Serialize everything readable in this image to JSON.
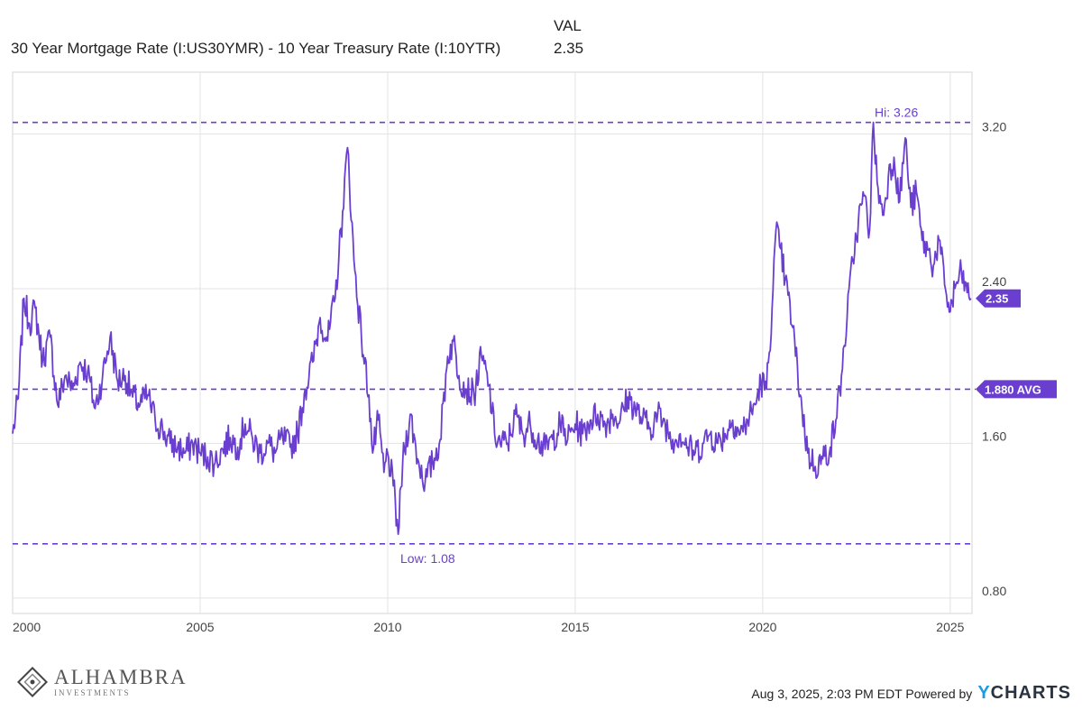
{
  "header": {
    "series_label": "30 Year Mortgage Rate (I:US30YMR) - 10 Year Treasury Rate (I:10YTR)",
    "val_header": "VAL",
    "val_value": "2.35"
  },
  "footer": {
    "timestamp": "Aug 3, 2025, 2:03 PM EDT Powered by",
    "brand_y": "Y",
    "brand_rest": "CHARTS"
  },
  "logo": {
    "name": "ALHAMBRA",
    "sub": "INVESTMENTS"
  },
  "colors": {
    "series": "#6a3fd0",
    "grid": "#e3e3e3",
    "axis_text": "#444444"
  },
  "chart_data": {
    "type": "line",
    "title": "",
    "xlabel": "",
    "ylabel": "",
    "x_range": [
      2000.0,
      2025.58
    ],
    "ylim": [
      0.72,
      3.52
    ],
    "x_ticks": [
      "2000",
      "2005",
      "2010",
      "2015",
      "2020",
      "2025"
    ],
    "y_ticks": [
      "0.80",
      "1.60",
      "2.40",
      "3.20"
    ],
    "grid": true,
    "series": [
      {
        "points": [
          [
            2000.0,
            1.65
          ],
          [
            2000.15,
            1.83
          ],
          [
            2000.3,
            2.35
          ],
          [
            2000.45,
            2.22
          ],
          [
            2000.6,
            2.3
          ],
          [
            2000.8,
            2.03
          ],
          [
            2001.0,
            2.15
          ],
          [
            2001.2,
            1.8
          ],
          [
            2001.4,
            1.95
          ],
          [
            2001.6,
            1.88
          ],
          [
            2001.8,
            2.02
          ],
          [
            2002.0,
            1.97
          ],
          [
            2002.2,
            1.78
          ],
          [
            2002.4,
            1.95
          ],
          [
            2002.6,
            2.15
          ],
          [
            2002.8,
            1.92
          ],
          [
            2003.0,
            1.95
          ],
          [
            2003.2,
            1.84
          ],
          [
            2003.4,
            1.8
          ],
          [
            2003.6,
            1.85
          ],
          [
            2003.8,
            1.72
          ],
          [
            2004.0,
            1.67
          ],
          [
            2004.2,
            1.6
          ],
          [
            2004.4,
            1.58
          ],
          [
            2004.6,
            1.55
          ],
          [
            2004.8,
            1.6
          ],
          [
            2005.0,
            1.55
          ],
          [
            2005.2,
            1.53
          ],
          [
            2005.4,
            1.5
          ],
          [
            2005.6,
            1.57
          ],
          [
            2005.8,
            1.63
          ],
          [
            2006.0,
            1.58
          ],
          [
            2006.2,
            1.7
          ],
          [
            2006.4,
            1.62
          ],
          [
            2006.6,
            1.55
          ],
          [
            2006.8,
            1.6
          ],
          [
            2007.0,
            1.55
          ],
          [
            2007.2,
            1.63
          ],
          [
            2007.4,
            1.58
          ],
          [
            2007.6,
            1.65
          ],
          [
            2007.8,
            1.88
          ],
          [
            2008.0,
            2.02
          ],
          [
            2008.2,
            2.25
          ],
          [
            2008.4,
            2.13
          ],
          [
            2008.6,
            2.35
          ],
          [
            2008.8,
            2.8
          ],
          [
            2008.93,
            3.13
          ],
          [
            2009.1,
            2.55
          ],
          [
            2009.3,
            2.15
          ],
          [
            2009.5,
            1.85
          ],
          [
            2009.6,
            1.55
          ],
          [
            2009.75,
            1.72
          ],
          [
            2009.9,
            1.45
          ],
          [
            2010.0,
            1.55
          ],
          [
            2010.15,
            1.38
          ],
          [
            2010.28,
            1.13
          ],
          [
            2010.4,
            1.5
          ],
          [
            2010.6,
            1.75
          ],
          [
            2010.8,
            1.52
          ],
          [
            2011.0,
            1.4
          ],
          [
            2011.2,
            1.5
          ],
          [
            2011.4,
            1.62
          ],
          [
            2011.6,
            2.05
          ],
          [
            2011.75,
            2.13
          ],
          [
            2011.9,
            1.95
          ],
          [
            2012.1,
            1.88
          ],
          [
            2012.3,
            1.85
          ],
          [
            2012.5,
            2.05
          ],
          [
            2012.7,
            1.9
          ],
          [
            2012.85,
            1.65
          ],
          [
            2013.0,
            1.6
          ],
          [
            2013.2,
            1.6
          ],
          [
            2013.4,
            1.75
          ],
          [
            2013.6,
            1.65
          ],
          [
            2013.8,
            1.7
          ],
          [
            2014.0,
            1.62
          ],
          [
            2014.2,
            1.57
          ],
          [
            2014.4,
            1.62
          ],
          [
            2014.6,
            1.7
          ],
          [
            2014.8,
            1.62
          ],
          [
            2015.0,
            1.7
          ],
          [
            2015.2,
            1.65
          ],
          [
            2015.4,
            1.72
          ],
          [
            2015.6,
            1.75
          ],
          [
            2015.8,
            1.7
          ],
          [
            2016.0,
            1.75
          ],
          [
            2016.2,
            1.72
          ],
          [
            2016.4,
            1.84
          ],
          [
            2016.6,
            1.78
          ],
          [
            2016.8,
            1.72
          ],
          [
            2017.0,
            1.68
          ],
          [
            2017.2,
            1.75
          ],
          [
            2017.4,
            1.7
          ],
          [
            2017.6,
            1.62
          ],
          [
            2017.8,
            1.65
          ],
          [
            2018.0,
            1.58
          ],
          [
            2018.2,
            1.55
          ],
          [
            2018.4,
            1.6
          ],
          [
            2018.6,
            1.65
          ],
          [
            2018.8,
            1.6
          ],
          [
            2019.0,
            1.65
          ],
          [
            2019.2,
            1.72
          ],
          [
            2019.4,
            1.65
          ],
          [
            2019.6,
            1.72
          ],
          [
            2019.8,
            1.8
          ],
          [
            2019.95,
            1.92
          ],
          [
            2020.1,
            1.88
          ],
          [
            2020.25,
            2.3
          ],
          [
            2020.35,
            2.7
          ],
          [
            2020.45,
            2.62
          ],
          [
            2020.6,
            2.45
          ],
          [
            2020.8,
            2.2
          ],
          [
            2021.0,
            1.85
          ],
          [
            2021.2,
            1.55
          ],
          [
            2021.4,
            1.48
          ],
          [
            2021.6,
            1.52
          ],
          [
            2021.8,
            1.58
          ],
          [
            2021.95,
            1.72
          ],
          [
            2022.1,
            1.95
          ],
          [
            2022.25,
            2.25
          ],
          [
            2022.4,
            2.55
          ],
          [
            2022.55,
            2.75
          ],
          [
            2022.7,
            2.88
          ],
          [
            2022.85,
            2.7
          ],
          [
            2022.95,
            3.26
          ],
          [
            2023.05,
            2.95
          ],
          [
            2023.2,
            2.78
          ],
          [
            2023.35,
            2.98
          ],
          [
            2023.5,
            3.08
          ],
          [
            2023.65,
            2.85
          ],
          [
            2023.8,
            3.18
          ],
          [
            2023.95,
            2.82
          ],
          [
            2024.1,
            2.9
          ],
          [
            2024.25,
            2.65
          ],
          [
            2024.4,
            2.6
          ],
          [
            2024.55,
            2.52
          ],
          [
            2024.7,
            2.65
          ],
          [
            2024.85,
            2.42
          ],
          [
            2025.0,
            2.28
          ],
          [
            2025.15,
            2.42
          ],
          [
            2025.3,
            2.48
          ],
          [
            2025.45,
            2.38
          ],
          [
            2025.55,
            2.35
          ]
        ]
      }
    ],
    "reference_lines": [
      {
        "label": "Hi: 3.26",
        "value": 3.26
      },
      {
        "label": "Low: 1.08",
        "value": 1.08
      },
      {
        "label": "1.880 AVG",
        "value": 1.88
      }
    ],
    "last_value_label": "2.35",
    "last_value": 2.35
  }
}
